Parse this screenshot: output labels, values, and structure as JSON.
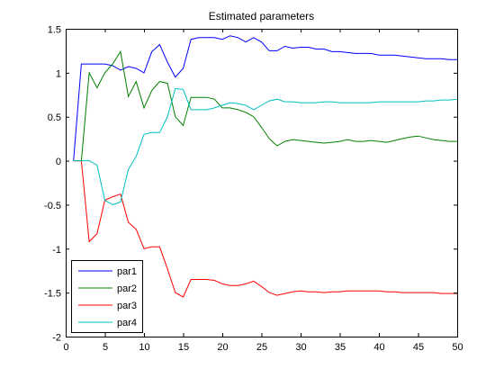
{
  "chart_data": {
    "type": "line",
    "title": "Estimated parameters",
    "xlabel": "",
    "ylabel": "",
    "xlim": [
      0,
      50
    ],
    "ylim": [
      -2,
      1.5
    ],
    "xticks": [
      0,
      5,
      10,
      15,
      20,
      25,
      30,
      35,
      40,
      45,
      50
    ],
    "yticks": [
      -2,
      -1.5,
      -1,
      -0.5,
      0,
      0.5,
      1,
      1.5
    ],
    "xtick_labels": [
      "0",
      "5",
      "10",
      "15",
      "20",
      "25",
      "30",
      "35",
      "40",
      "45",
      "50"
    ],
    "ytick_labels": [
      "-2",
      "-1.5",
      "-1",
      "-0.5",
      "0",
      "0.5",
      "1",
      "1.5"
    ],
    "grid": false,
    "legend_position": "bottom-left",
    "x": [
      1,
      2,
      3,
      4,
      5,
      6,
      7,
      8,
      9,
      10,
      11,
      12,
      13,
      14,
      15,
      16,
      17,
      18,
      19,
      20,
      21,
      22,
      23,
      24,
      25,
      26,
      27,
      28,
      29,
      30,
      31,
      32,
      33,
      34,
      35,
      36,
      37,
      38,
      39,
      40,
      41,
      42,
      43,
      44,
      45,
      46,
      47,
      48,
      49,
      50
    ],
    "series": [
      {
        "name": "par1",
        "color": "#0000ff",
        "values": [
          0,
          1.1,
          1.1,
          1.1,
          1.1,
          1.08,
          1.03,
          1.07,
          1.05,
          1.0,
          1.24,
          1.32,
          1.12,
          0.95,
          1.05,
          1.38,
          1.4,
          1.4,
          1.4,
          1.38,
          1.42,
          1.4,
          1.35,
          1.4,
          1.35,
          1.25,
          1.25,
          1.3,
          1.28,
          1.29,
          1.29,
          1.27,
          1.27,
          1.24,
          1.24,
          1.23,
          1.22,
          1.22,
          1.22,
          1.2,
          1.2,
          1.2,
          1.19,
          1.18,
          1.17,
          1.16,
          1.16,
          1.16,
          1.15,
          1.15
        ]
      },
      {
        "name": "par2",
        "color": "#008000",
        "values": [
          0,
          0,
          1.0,
          0.83,
          1.0,
          1.1,
          1.24,
          0.73,
          0.9,
          0.6,
          0.8,
          0.9,
          0.88,
          0.5,
          0.4,
          0.72,
          0.72,
          0.72,
          0.7,
          0.6,
          0.6,
          0.58,
          0.55,
          0.5,
          0.38,
          0.25,
          0.17,
          0.22,
          0.24,
          0.23,
          0.22,
          0.21,
          0.2,
          0.21,
          0.22,
          0.24,
          0.22,
          0.22,
          0.23,
          0.22,
          0.21,
          0.23,
          0.25,
          0.27,
          0.28,
          0.26,
          0.24,
          0.23,
          0.22,
          0.22
        ]
      },
      {
        "name": "par3",
        "color": "#ff0000",
        "values": [
          0,
          0,
          -0.92,
          -0.83,
          -0.45,
          -0.41,
          -0.38,
          -0.7,
          -0.78,
          -1.0,
          -0.98,
          -0.98,
          -1.23,
          -1.5,
          -1.55,
          -1.35,
          -1.35,
          -1.35,
          -1.36,
          -1.4,
          -1.42,
          -1.42,
          -1.4,
          -1.37,
          -1.43,
          -1.5,
          -1.53,
          -1.51,
          -1.49,
          -1.48,
          -1.49,
          -1.49,
          -1.5,
          -1.49,
          -1.49,
          -1.48,
          -1.48,
          -1.48,
          -1.48,
          -1.48,
          -1.49,
          -1.49,
          -1.5,
          -1.5,
          -1.5,
          -1.5,
          -1.5,
          -1.51,
          -1.51,
          -1.51
        ]
      },
      {
        "name": "par4",
        "color": "#00bfbf",
        "values": [
          0,
          0,
          0,
          -0.05,
          -0.45,
          -0.5,
          -0.47,
          -0.1,
          0.05,
          0.3,
          0.32,
          0.32,
          0.5,
          0.82,
          0.81,
          0.58,
          0.58,
          0.58,
          0.6,
          0.63,
          0.66,
          0.65,
          0.63,
          0.58,
          0.63,
          0.68,
          0.7,
          0.67,
          0.67,
          0.66,
          0.66,
          0.66,
          0.67,
          0.67,
          0.66,
          0.66,
          0.66,
          0.66,
          0.66,
          0.67,
          0.67,
          0.67,
          0.67,
          0.67,
          0.67,
          0.68,
          0.68,
          0.69,
          0.69,
          0.7
        ]
      }
    ]
  }
}
